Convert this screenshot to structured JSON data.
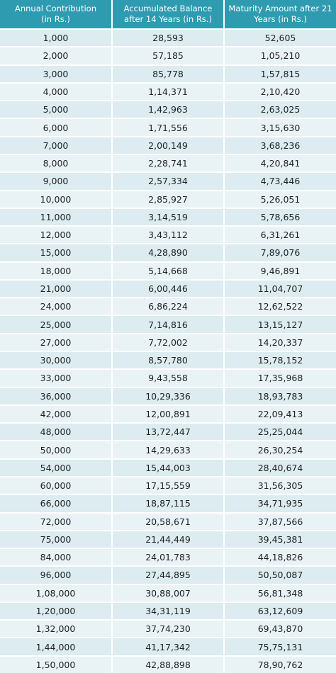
{
  "table": {
    "header": [
      [
        "Annual Contribution",
        "(in Rs.)"
      ],
      [
        "Accumulated Balance",
        "after 14 Years (in Rs.)"
      ],
      [
        "Maturity Amount after 21",
        "Years (in Rs.)"
      ]
    ],
    "rows": [
      [
        "1,000",
        "28,593",
        "52,605"
      ],
      [
        "2,000",
        "57,185",
        "1,05,210"
      ],
      [
        "3,000",
        "85,778",
        "1,57,815"
      ],
      [
        "4,000",
        "1,14,371",
        "2,10,420"
      ],
      [
        "5,000",
        "1,42,963",
        "2,63,025"
      ],
      [
        "6,000",
        "1,71,556",
        "3,15,630"
      ],
      [
        "7,000",
        "2,00,149",
        "3,68,236"
      ],
      [
        "8,000",
        "2,28,741",
        "4,20,841"
      ],
      [
        "9,000",
        "2,57,334",
        "4,73,446"
      ],
      [
        "10,000",
        "2,85,927",
        "5,26,051"
      ],
      [
        "11,000",
        "3,14,519",
        "5,78,656"
      ],
      [
        "12,000",
        "3,43,112",
        "6,31,261"
      ],
      [
        "15,000",
        "4,28,890",
        "7,89,076"
      ],
      [
        "18,000",
        "5,14,668",
        "9,46,891"
      ],
      [
        "21,000",
        "6,00,446",
        "11,04,707"
      ],
      [
        "24,000",
        "6,86,224",
        "12,62,522"
      ],
      [
        "25,000",
        "7,14,816",
        "13,15,127"
      ],
      [
        "27,000",
        "7,72,002",
        "14,20,337"
      ],
      [
        "30,000",
        "8,57,780",
        "15,78,152"
      ],
      [
        "33,000",
        "9,43,558",
        "17,35,968"
      ],
      [
        "36,000",
        "10,29,336",
        "18,93,783"
      ],
      [
        "42,000",
        "12,00,891",
        "22,09,413"
      ],
      [
        "48,000",
        "13,72,447",
        "25,25,044"
      ],
      [
        "50,000",
        "14,29,633",
        "26,30,254"
      ],
      [
        "54,000",
        "15,44,003",
        "28,40,674"
      ],
      [
        "60,000",
        "17,15,559",
        "31,56,305"
      ],
      [
        "66,000",
        "18,87,115",
        "34,71,935"
      ],
      [
        "72,000",
        "20,58,671",
        "37,87,566"
      ],
      [
        "75,000",
        "21,44,449",
        "39,45,381"
      ],
      [
        "84,000",
        "24,01,783",
        "44,18,826"
      ],
      [
        "96,000",
        "27,44,895",
        "50,50,087"
      ],
      [
        "1,08,000",
        "30,88,007",
        "56,81,348"
      ],
      [
        "1,20,000",
        "34,31,119",
        "63,12,609"
      ],
      [
        "1,32,000",
        "37,74,230",
        "69,43,870"
      ],
      [
        "1,44,000",
        "41,17,342",
        "75,75,131"
      ],
      [
        "1,50,000",
        "42,88,898",
        "78,90,762"
      ]
    ]
  }
}
